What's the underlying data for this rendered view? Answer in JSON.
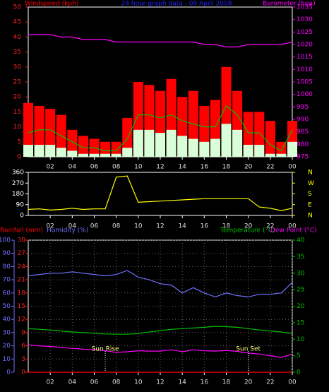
{
  "chart_data": [
    {
      "type": "line",
      "title": "24 hour graph data - 09 April 2008",
      "x": [
        0,
        1,
        2,
        3,
        4,
        5,
        6,
        7,
        8,
        9,
        10,
        11,
        12,
        13,
        14,
        15,
        16,
        17,
        18,
        19,
        20,
        21,
        22,
        23,
        24
      ],
      "xlim": [
        0,
        24
      ],
      "xticks": [
        {
          "value": 2,
          "label": "02"
        },
        {
          "value": 4,
          "label": "04"
        },
        {
          "value": 6,
          "label": "06"
        },
        {
          "value": 8,
          "label": "08"
        },
        10,
        12,
        14,
        16,
        18,
        20,
        22,
        {
          "value": 24,
          "label": "00"
        }
      ],
      "ylim": [
        0,
        50
      ],
      "yticks": [
        0,
        5,
        10,
        15,
        20,
        25,
        30,
        35,
        40,
        45,
        50
      ],
      "ycolor": "#ff2020",
      "y2lim": [
        975,
        1035
      ],
      "y2ticks": [
        975,
        980,
        985,
        990,
        995,
        1000,
        1005,
        1010,
        1015,
        1020,
        1025,
        1030,
        1035
      ],
      "y2color": "#ff00ff",
      "grid": false,
      "series": [
        {
          "name": "Windspeed (kph)",
          "color": "#ff0000",
          "style": "bars",
          "values": [
            18,
            17,
            16,
            14,
            9,
            7,
            6,
            5,
            5,
            13,
            25,
            24,
            22,
            26,
            20,
            22,
            17,
            19,
            30,
            22,
            15,
            15,
            12,
            5,
            12
          ]
        },
        {
          "color": "#00c000",
          "style": "line",
          "values": [
            8,
            9,
            9,
            7,
            5,
            3,
            3,
            2,
            2,
            6,
            14,
            14,
            13,
            14,
            12,
            11,
            10,
            10,
            17,
            14,
            8,
            8,
            4,
            2,
            9
          ]
        },
        {
          "color": "#d8ffd8",
          "style": "bars",
          "values": [
            4,
            4,
            4,
            3,
            2,
            1,
            1,
            1,
            1,
            3,
            9,
            9,
            8,
            9,
            7,
            6,
            5,
            6,
            11,
            9,
            4,
            4,
            1,
            1,
            5
          ]
        },
        {
          "name": "Barometer (hpa)",
          "color": "#ff00ff",
          "style": "line",
          "axis": "y2",
          "values": [
            1024,
            1024,
            1024,
            1023,
            1023,
            1022,
            1022,
            1022,
            1021,
            1021,
            1021,
            1021,
            1021,
            1021,
            1021,
            1021,
            1020,
            1020,
            1019,
            1019,
            1020,
            1020,
            1020,
            1020,
            1021
          ]
        }
      ]
    },
    {
      "type": "line",
      "x": [
        0,
        1,
        2,
        3,
        4,
        5,
        6,
        7,
        8,
        9,
        10,
        11,
        12,
        13,
        14,
        15,
        16,
        17,
        18,
        19,
        20,
        21,
        22,
        23,
        24
      ],
      "xlim": [
        0,
        24
      ],
      "xticks": [
        {
          "value": 2,
          "label": "02"
        },
        {
          "value": 4,
          "label": "04"
        },
        {
          "value": 6,
          "label": "06"
        },
        {
          "value": 8,
          "label": "08"
        },
        10,
        12,
        14,
        16,
        18,
        20,
        22,
        {
          "value": 24,
          "label": "00"
        }
      ],
      "ylim": [
        0,
        360
      ],
      "yticks": [
        0,
        90,
        180,
        270,
        360
      ],
      "ycolor": "#ffffff",
      "y2lim": [
        0,
        360
      ],
      "y2ticks": [
        {
          "value": 0,
          "label": "N"
        },
        {
          "value": 90,
          "label": "E"
        },
        {
          "value": 180,
          "label": "S"
        },
        {
          "value": 270,
          "label": "W"
        },
        {
          "value": 360,
          "label": "N"
        }
      ],
      "y2color": "#ffff00",
      "grid": false,
      "series": [
        {
          "color": "#ffff00",
          "style": "line",
          "values": [
            50,
            55,
            45,
            50,
            60,
            50,
            55,
            55,
            320,
            330,
            110,
            115,
            120,
            125,
            130,
            135,
            140,
            140,
            140,
            140,
            140,
            70,
            60,
            40,
            60
          ]
        }
      ]
    },
    {
      "type": "line",
      "x": [
        0,
        1,
        2,
        3,
        4,
        5,
        6,
        7,
        8,
        9,
        10,
        11,
        12,
        13,
        14,
        15,
        16,
        17,
        18,
        19,
        20,
        21,
        22,
        23,
        24
      ],
      "xlim": [
        0,
        24
      ],
      "xticks": [
        {
          "value": 2,
          "label": "02"
        },
        {
          "value": 4,
          "label": "04"
        },
        {
          "value": 6,
          "label": "06"
        },
        {
          "value": 8,
          "label": "08"
        },
        10,
        12,
        14,
        16,
        18,
        20,
        22,
        {
          "value": 24,
          "label": "00"
        }
      ],
      "ylim": [
        0,
        100
      ],
      "yticks": [
        0,
        10,
        20,
        30,
        40,
        50,
        60,
        70,
        80,
        90,
        100
      ],
      "ycolor": "#7070ff",
      "y3lim": [
        0,
        30
      ],
      "y3ticks": [
        0,
        3,
        6,
        9,
        12,
        15,
        18,
        21,
        24,
        27,
        30
      ],
      "y3color": "#ff2020",
      "y2lim": [
        0,
        40
      ],
      "y2ticks": [
        0,
        5,
        10,
        15,
        20,
        25,
        30,
        35,
        40
      ],
      "y2color": "#00c000",
      "grid": true,
      "annotations": [
        {
          "text": "Sun Rise",
          "x": 7
        },
        {
          "text": "Sun Set",
          "x": 20
        }
      ],
      "series": [
        {
          "name": "Rainfall (mm)",
          "color": "#ff0000",
          "style": "line",
          "axis": "y3",
          "values": [
            0,
            0,
            0,
            0,
            0,
            0,
            0,
            0,
            0,
            0,
            0,
            0,
            0,
            0,
            0,
            0,
            0,
            0,
            0,
            0,
            0,
            0,
            0,
            0,
            0
          ]
        },
        {
          "name": "Humidity (%)",
          "color": "#7070ff",
          "style": "line",
          "values": [
            73,
            74,
            75,
            75,
            76,
            75,
            74,
            73,
            74,
            77,
            72,
            70,
            67,
            66,
            60,
            64,
            60,
            57,
            60,
            58,
            57,
            59,
            59,
            60,
            68
          ]
        },
        {
          "name": "Temperature (°C)",
          "color": "#00c000",
          "style": "line",
          "axis": "y2",
          "values": [
            13.2,
            13,
            12.8,
            12.5,
            12.2,
            12,
            11.8,
            11.6,
            11.5,
            11.5,
            11.7,
            12.2,
            12.6,
            13,
            13.2,
            13.4,
            13.6,
            13.9,
            13.8,
            13.6,
            13.2,
            12.8,
            12.5,
            12.2,
            11.7
          ]
        },
        {
          "name": "Dew Point (°C)",
          "color": "#ff00ff",
          "style": "line",
          "axis": "y2",
          "values": [
            8.3,
            8,
            7.8,
            7.5,
            7.2,
            7,
            6.8,
            6.5,
            6,
            6.2,
            6.5,
            6.4,
            6.4,
            6.8,
            6.2,
            6.8,
            6.5,
            6.4,
            6.6,
            6.3,
            5.8,
            5.5,
            5,
            4.5,
            5.5
          ]
        }
      ]
    }
  ]
}
